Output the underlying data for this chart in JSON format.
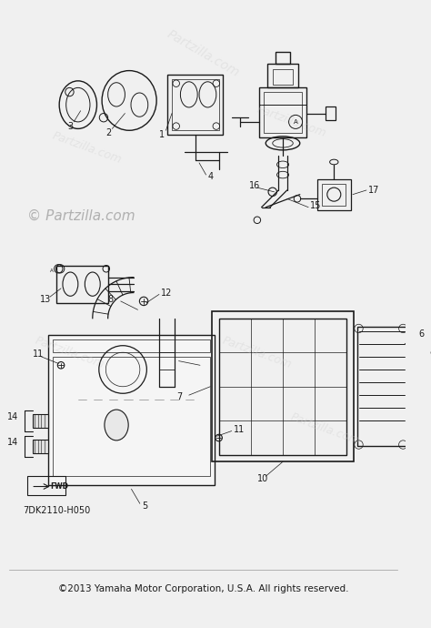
{
  "background_color": "#f0f0f0",
  "watermark_color": "#cccccc",
  "watermark_text": "Partzilla.com",
  "copyright_text": "©2013 Yamaha Motor Corporation, U.S.A. All rights reserved.",
  "part_code": "7DK2110-H050",
  "line_color": "#1a1a1a",
  "label_fontsize": 7,
  "copyright_fontsize": 7.5
}
